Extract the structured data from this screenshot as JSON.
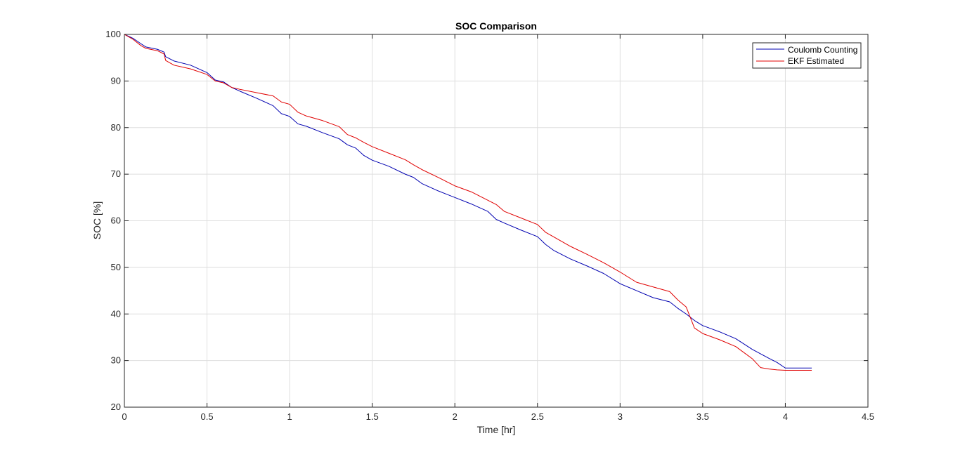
{
  "chart_data": {
    "type": "line",
    "title": "SOC Comparison",
    "xlabel": "Time [hr]",
    "ylabel": "SOC [%]",
    "xlim": [
      0,
      4.5
    ],
    "ylim": [
      20,
      100
    ],
    "xticks": [
      0,
      0.5,
      1,
      1.5,
      2,
      2.5,
      3,
      3.5,
      4,
      4.5
    ],
    "xtick_labels": [
      "0",
      "0.5",
      "1",
      "1.5",
      "2",
      "2.5",
      "3",
      "3.5",
      "4",
      "4.5"
    ],
    "yticks": [
      20,
      30,
      40,
      50,
      60,
      70,
      80,
      90,
      100
    ],
    "ytick_labels": [
      "20",
      "30",
      "40",
      "50",
      "60",
      "70",
      "80",
      "90",
      "100"
    ],
    "grid": true,
    "legend_position": "top-right",
    "series": [
      {
        "name": "Coulomb Counting",
        "color": "#0000b0",
        "x": [
          0,
          0.05,
          0.1,
          0.13,
          0.2,
          0.24,
          0.25,
          0.3,
          0.4,
          0.5,
          0.55,
          0.6,
          0.65,
          0.7,
          0.8,
          0.9,
          0.95,
          1.0,
          1.05,
          1.1,
          1.2,
          1.3,
          1.35,
          1.4,
          1.45,
          1.5,
          1.6,
          1.7,
          1.75,
          1.8,
          1.9,
          2.0,
          2.1,
          2.2,
          2.25,
          2.3,
          2.4,
          2.5,
          2.55,
          2.6,
          2.7,
          2.8,
          2.9,
          3.0,
          3.1,
          3.2,
          3.3,
          3.35,
          3.4,
          3.45,
          3.5,
          3.6,
          3.7,
          3.8,
          3.9,
          3.95,
          4.0,
          4.16
        ],
        "y": [
          100,
          99.2,
          98.0,
          97.3,
          96.8,
          96.2,
          95.2,
          94.3,
          93.4,
          91.8,
          90.2,
          89.8,
          88.6,
          87.8,
          86.3,
          84.7,
          83.0,
          82.4,
          80.8,
          80.3,
          78.9,
          77.6,
          76.3,
          75.6,
          74.0,
          73.0,
          71.7,
          70.0,
          69.3,
          68.0,
          66.4,
          65.0,
          63.6,
          62.0,
          60.3,
          59.5,
          58.0,
          56.6,
          54.9,
          53.6,
          51.8,
          50.3,
          48.7,
          46.5,
          45.0,
          43.5,
          42.6,
          41.2,
          40.0,
          38.6,
          37.5,
          36.2,
          34.7,
          32.4,
          30.5,
          29.6,
          28.4,
          28.4
        ]
      },
      {
        "name": "EKF Estimated",
        "color": "#e00000",
        "x": [
          0,
          0.05,
          0.1,
          0.13,
          0.2,
          0.24,
          0.25,
          0.3,
          0.4,
          0.5,
          0.55,
          0.6,
          0.65,
          0.7,
          0.8,
          0.9,
          0.95,
          1.0,
          1.05,
          1.1,
          1.2,
          1.3,
          1.35,
          1.4,
          1.45,
          1.5,
          1.6,
          1.7,
          1.75,
          1.8,
          1.9,
          2.0,
          2.1,
          2.2,
          2.25,
          2.3,
          2.4,
          2.5,
          2.55,
          2.6,
          2.7,
          2.8,
          2.9,
          3.0,
          3.1,
          3.2,
          3.3,
          3.35,
          3.4,
          3.45,
          3.5,
          3.6,
          3.7,
          3.8,
          3.85,
          3.9,
          3.95,
          4.0,
          4.16
        ],
        "y": [
          100,
          99.0,
          97.6,
          97.0,
          96.5,
          95.8,
          94.4,
          93.4,
          92.6,
          91.4,
          90.0,
          89.6,
          88.6,
          88.2,
          87.5,
          86.8,
          85.5,
          85.0,
          83.3,
          82.5,
          81.5,
          80.2,
          78.5,
          77.8,
          76.8,
          75.9,
          74.5,
          73.1,
          72.0,
          71.0,
          69.3,
          67.5,
          66.2,
          64.4,
          63.5,
          62.0,
          60.6,
          59.2,
          57.5,
          56.5,
          54.5,
          52.8,
          51.0,
          49.0,
          46.8,
          45.8,
          44.8,
          43.0,
          41.5,
          37.0,
          35.8,
          34.5,
          33.0,
          30.4,
          28.5,
          28.2,
          28.0,
          27.9,
          27.9
        ]
      }
    ]
  }
}
